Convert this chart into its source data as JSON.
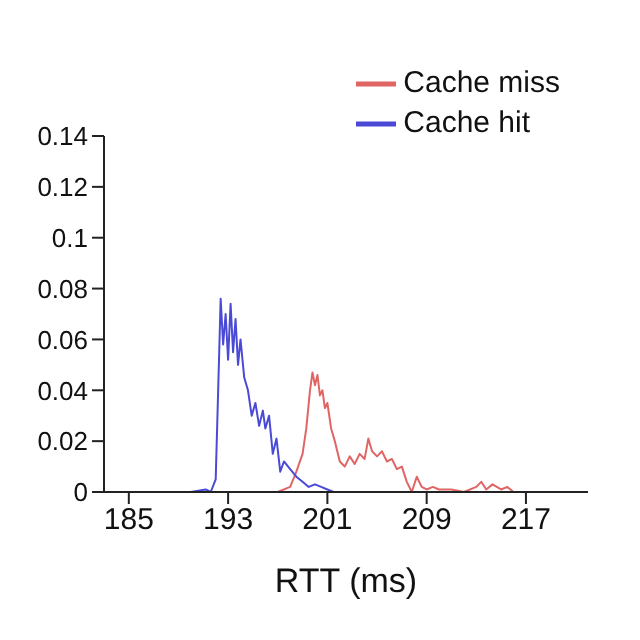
{
  "chart_data": {
    "type": "line",
    "xlabel": "RTT (ms)",
    "xlim": [
      183,
      222
    ],
    "xticks": [
      185,
      193,
      201,
      209,
      217
    ],
    "ylim": [
      0,
      0.14
    ],
    "yticks": [
      0,
      0.02,
      0.04,
      0.06,
      0.08,
      0.1,
      0.12,
      0.14
    ],
    "grid": false,
    "legend": "top right",
    "marker": "none",
    "line_style": "solid",
    "series": [
      {
        "name": "Cache miss",
        "color": "#e06666",
        "x": [
          197,
          198,
          198.5,
          199,
          199.3,
          199.6,
          199.8,
          200,
          200.2,
          200.4,
          200.6,
          200.8,
          201,
          201.3,
          201.6,
          202,
          202.4,
          202.8,
          203.2,
          203.6,
          204,
          204.3,
          204.6,
          205,
          205.4,
          205.8,
          206.2,
          206.6,
          207,
          207.4,
          207.8,
          208.2,
          208.6,
          209,
          209.5,
          210,
          211,
          212,
          213,
          213.4,
          213.8,
          214.3,
          215,
          215.5,
          216,
          217
        ],
        "values": [
          0,
          0.002,
          0.008,
          0.015,
          0.025,
          0.04,
          0.047,
          0.042,
          0.046,
          0.038,
          0.04,
          0.033,
          0.035,
          0.025,
          0.02,
          0.012,
          0.01,
          0.014,
          0.011,
          0.015,
          0.013,
          0.021,
          0.016,
          0.014,
          0.016,
          0.012,
          0.013,
          0.009,
          0.01,
          0.004,
          0.0,
          0.006,
          0.002,
          0.001,
          0.002,
          0.001,
          0.001,
          0.0,
          0.002,
          0.004,
          0.001,
          0.003,
          0.001,
          0.002,
          0.0,
          0.0
        ]
      },
      {
        "name": "Cache hit",
        "color": "#4a4ad6",
        "x": [
          190,
          191.2,
          191.6,
          192,
          192.2,
          192.4,
          192.6,
          192.8,
          193,
          193.2,
          193.4,
          193.6,
          193.8,
          194,
          194.3,
          194.6,
          194.9,
          195.2,
          195.5,
          195.8,
          196,
          196.3,
          196.6,
          196.9,
          197.2,
          197.5,
          198,
          198.5,
          199,
          199.5,
          200,
          200.5,
          201,
          201.5
        ],
        "values": [
          0,
          0.001,
          0.0,
          0.005,
          0.04,
          0.076,
          0.058,
          0.07,
          0.052,
          0.074,
          0.055,
          0.068,
          0.05,
          0.06,
          0.045,
          0.04,
          0.03,
          0.035,
          0.026,
          0.032,
          0.025,
          0.03,
          0.015,
          0.021,
          0.008,
          0.012,
          0.009,
          0.006,
          0.004,
          0.002,
          0.003,
          0.002,
          0.001,
          0
        ]
      }
    ]
  }
}
